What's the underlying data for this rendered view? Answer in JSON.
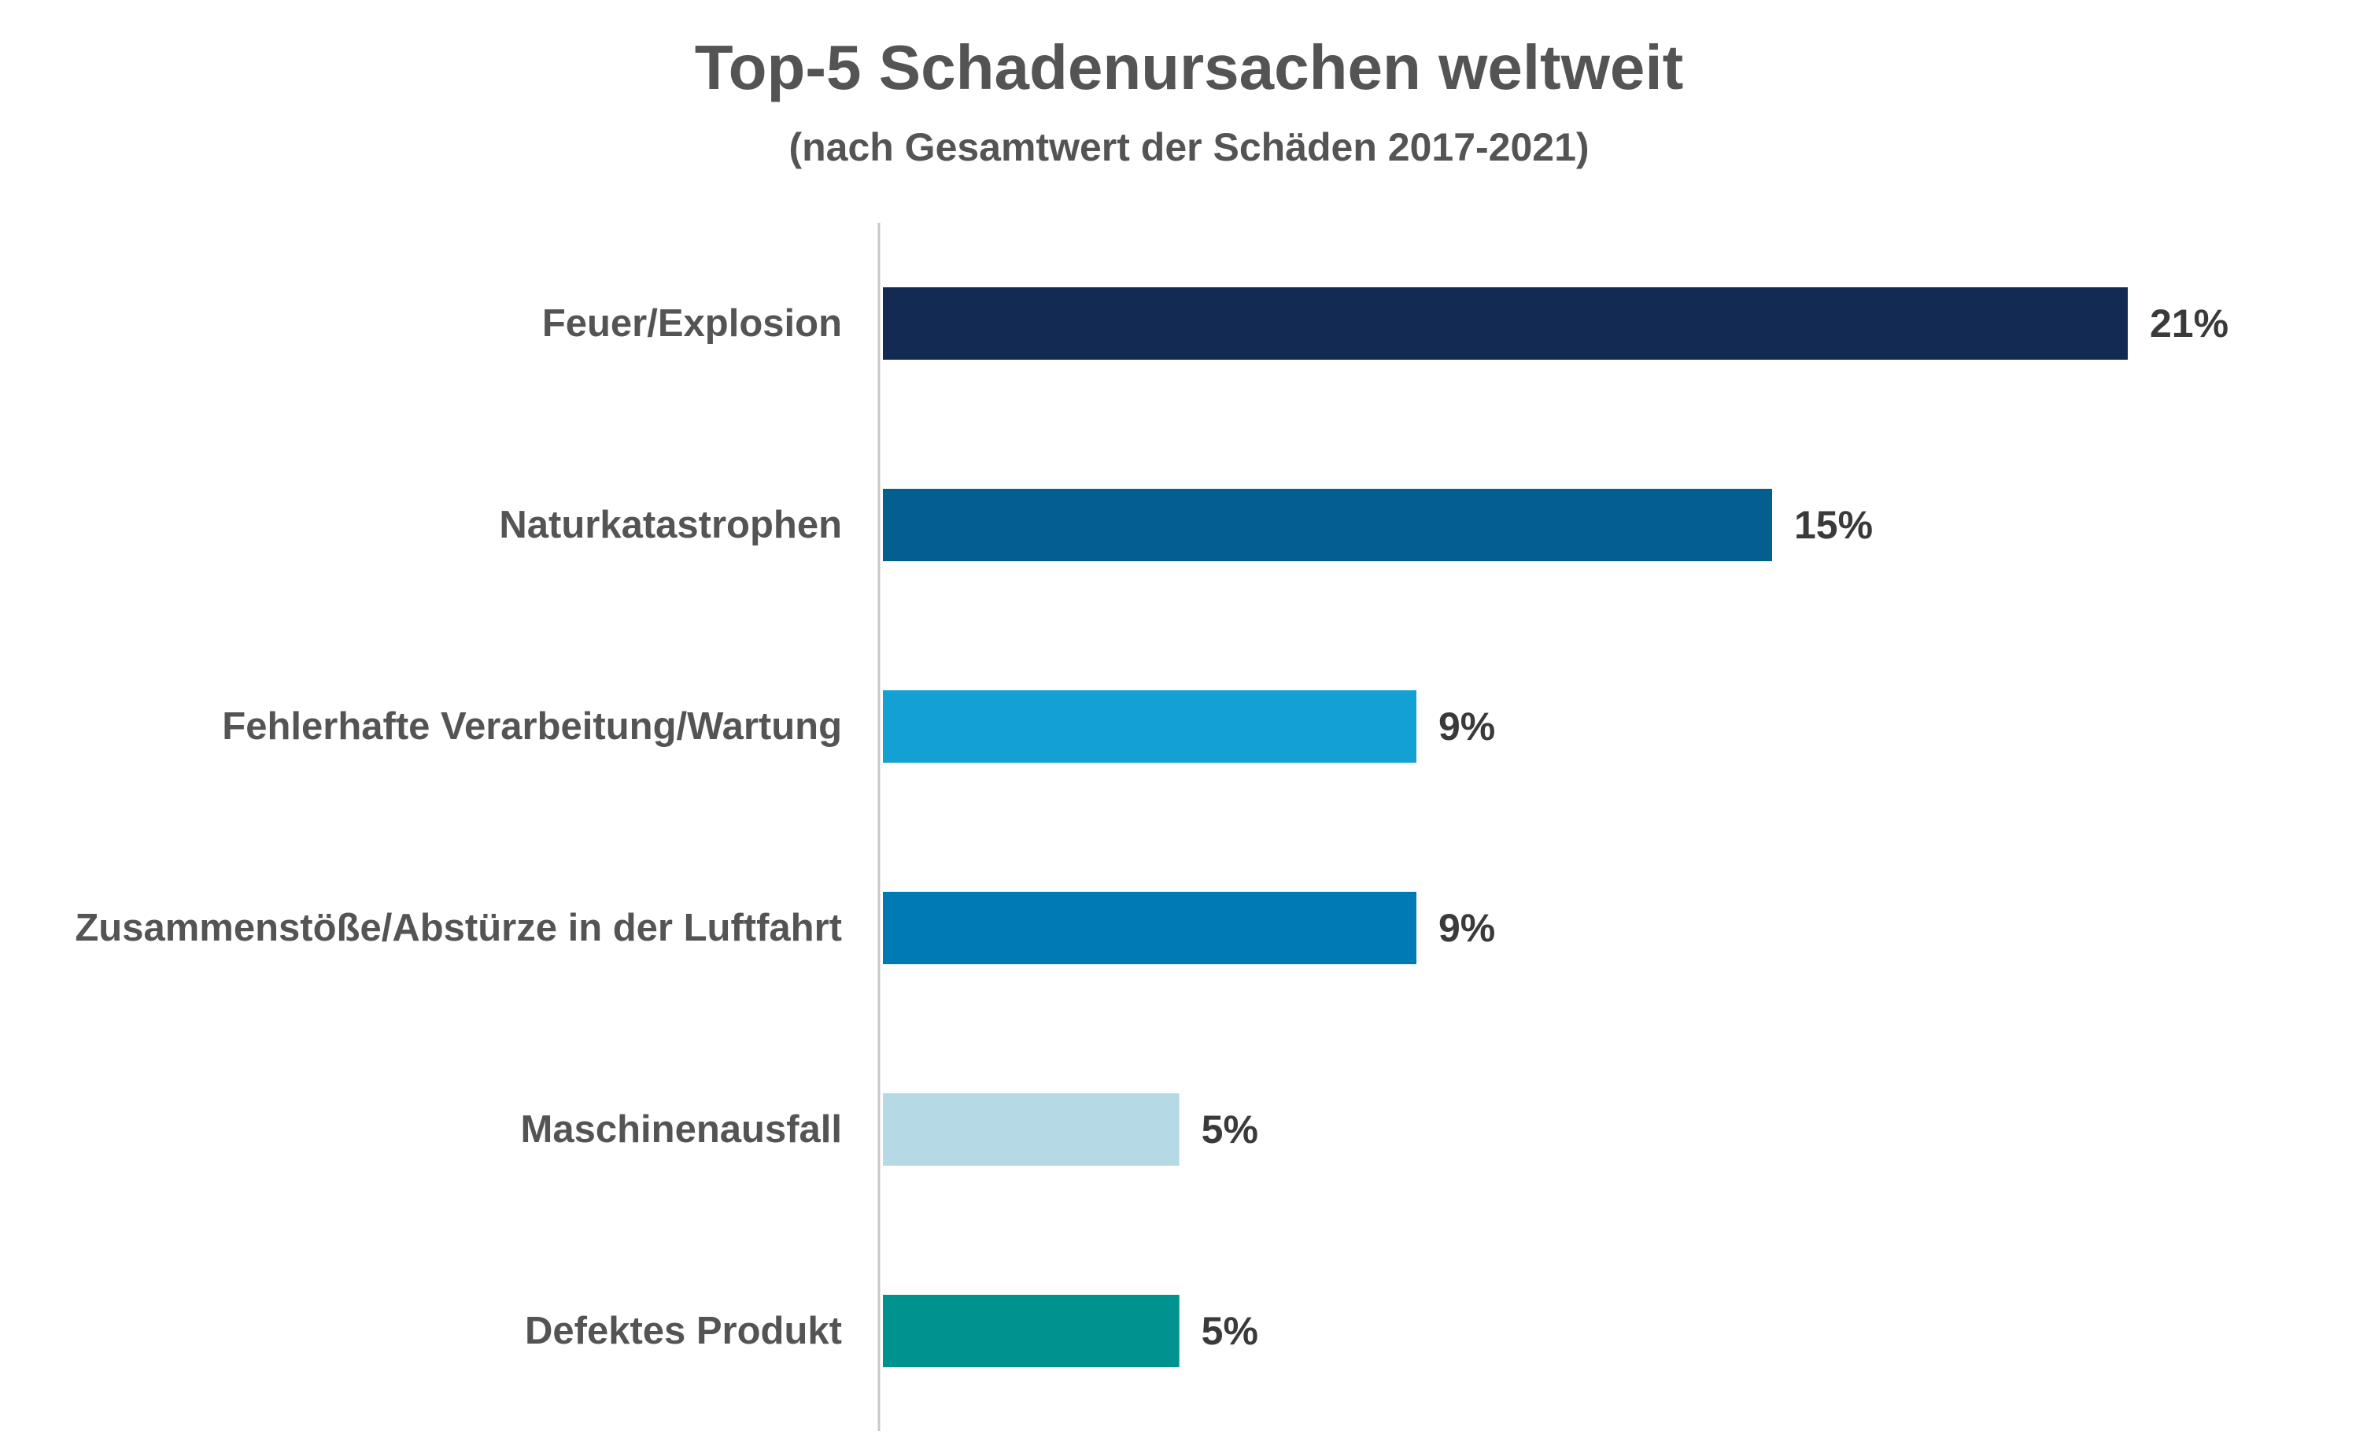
{
  "chart_data": {
    "type": "bar",
    "orientation": "horizontal",
    "title": "Top-5 Schadenursachen weltweit",
    "subtitle": "(nach Gesamtwert der Schäden 2017-2021)",
    "categories": [
      "Feuer/Explosion",
      "Naturkatastrophen",
      "Fehlerhafte Verarbeitung/Wartung",
      "Zusammenstöße/Abstürze in der Luftfahrt",
      "Maschinenausfall",
      "Defektes Produkt"
    ],
    "values": [
      21,
      15,
      9,
      9,
      5,
      5
    ],
    "value_labels": [
      "21%",
      "15%",
      "9%",
      "9%",
      "5%",
      "5%"
    ],
    "colors": [
      "#132a53",
      "#025f8f",
      "#13a0d3",
      "#007ab5",
      "#b5d9e5",
      "#00928e"
    ],
    "xlim": [
      0,
      21
    ],
    "grid": false,
    "legend": "none"
  }
}
